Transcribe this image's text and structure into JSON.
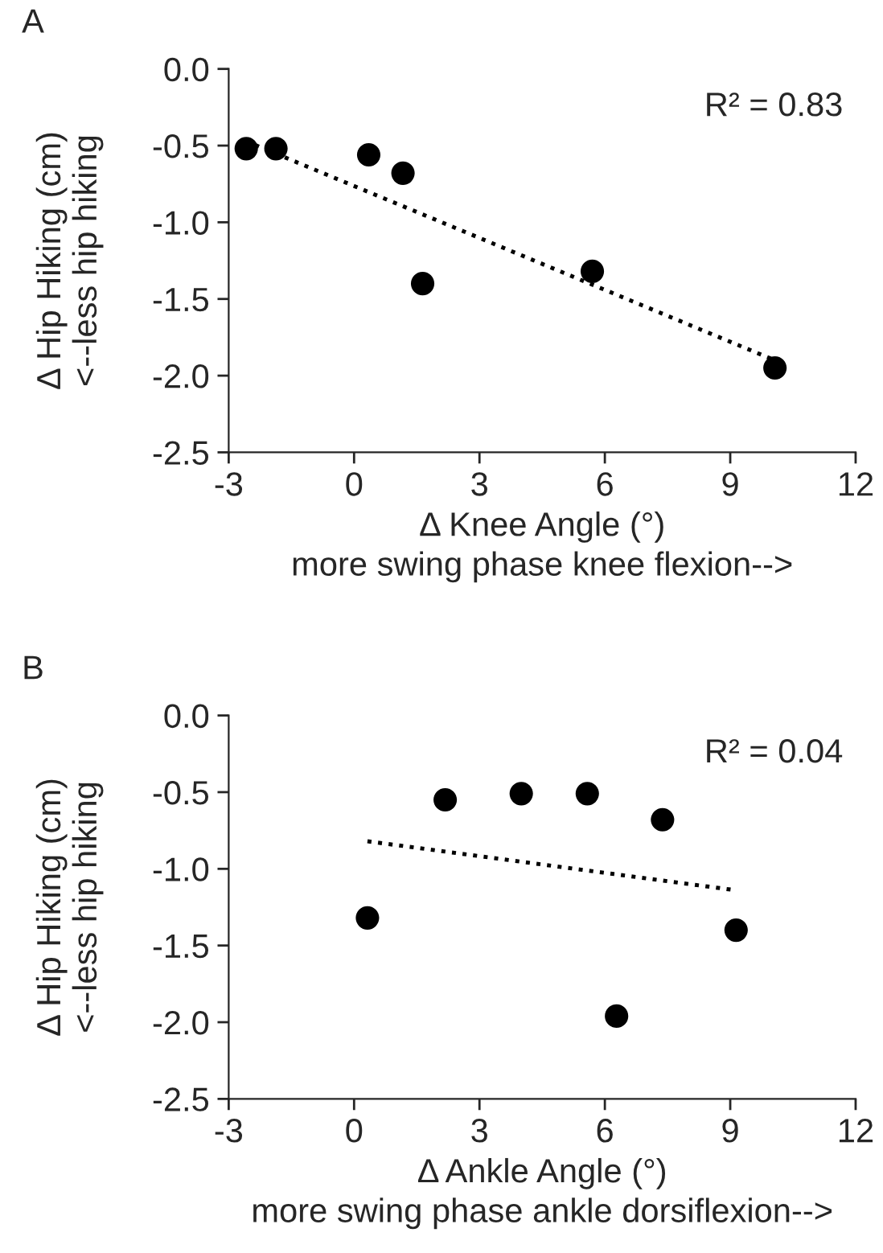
{
  "chart_data": [
    {
      "type": "scatter",
      "title": "A",
      "xlabel": "Δ Knee Angle (°)\nmore swing phase knee flexion-->",
      "ylabel": "Δ Hip Hiking (cm)\n<--less hip hiking",
      "xlim": [
        -3,
        12
      ],
      "xticks": [
        -3,
        0,
        3,
        6,
        9,
        12
      ],
      "ylim": [
        -2.5,
        0.0
      ],
      "yticks": [
        {
          "value": -2.5,
          "label": "-2.5"
        },
        {
          "value": -2.0,
          "label": "-2.0"
        },
        {
          "value": -1.5,
          "label": "-1.5"
        },
        {
          "value": -1.0,
          "label": "-1.0"
        },
        {
          "value": -0.5,
          "label": "-0.5"
        },
        {
          "value": 0.0,
          "label": "0.0"
        }
      ],
      "grid": false,
      "legend": false,
      "annotations": [
        "R² = 0.83"
      ],
      "series": [
        {
          "marker": "circle",
          "color": "#000000",
          "x": [
            -2.58,
            -1.87,
            0.35,
            1.17,
            1.64,
            5.7,
            10.07
          ],
          "values": [
            -0.52,
            -0.52,
            -0.56,
            -0.68,
            -1.4,
            -1.32,
            -1.95
          ]
        },
        {
          "type": "line",
          "marker": "none",
          "line_style": "dotted",
          "color": "#000000",
          "x": [
            -2.6,
            10.07
          ],
          "values": [
            -0.47,
            -1.9
          ]
        }
      ]
    },
    {
      "type": "scatter",
      "title": "B",
      "xlabel": "Δ Ankle Angle (°)\nmore swing phase ankle dorsiflexion-->",
      "ylabel": "Δ Hip Hiking (cm)\n<--less hip hiking",
      "xlim": [
        -3,
        12
      ],
      "xticks": [
        -3,
        0,
        3,
        6,
        9,
        12
      ],
      "ylim": [
        -2.5,
        0.0
      ],
      "yticks": [
        {
          "value": -2.5,
          "label": "-2.5"
        },
        {
          "value": -2.0,
          "label": "-2.0"
        },
        {
          "value": -1.5,
          "label": "-1.5"
        },
        {
          "value": -1.0,
          "label": "-1.0"
        },
        {
          "value": -0.5,
          "label": "-0.5"
        },
        {
          "value": 0.0,
          "label": "0.0"
        }
      ],
      "grid": false,
      "legend": false,
      "annotations": [
        "R² = 0.04"
      ],
      "series": [
        {
          "marker": "circle",
          "color": "#000000",
          "x": [
            0.32,
            2.18,
            4.0,
            5.58,
            7.38,
            6.28,
            9.14
          ],
          "values": [
            -1.32,
            -0.55,
            -0.51,
            -0.51,
            -0.68,
            -1.96,
            -1.4
          ]
        },
        {
          "type": "line",
          "marker": "none",
          "line_style": "dotted",
          "color": "#000000",
          "x": [
            0.32,
            9.14
          ],
          "values": [
            -0.82,
            -1.14
          ]
        }
      ]
    }
  ]
}
